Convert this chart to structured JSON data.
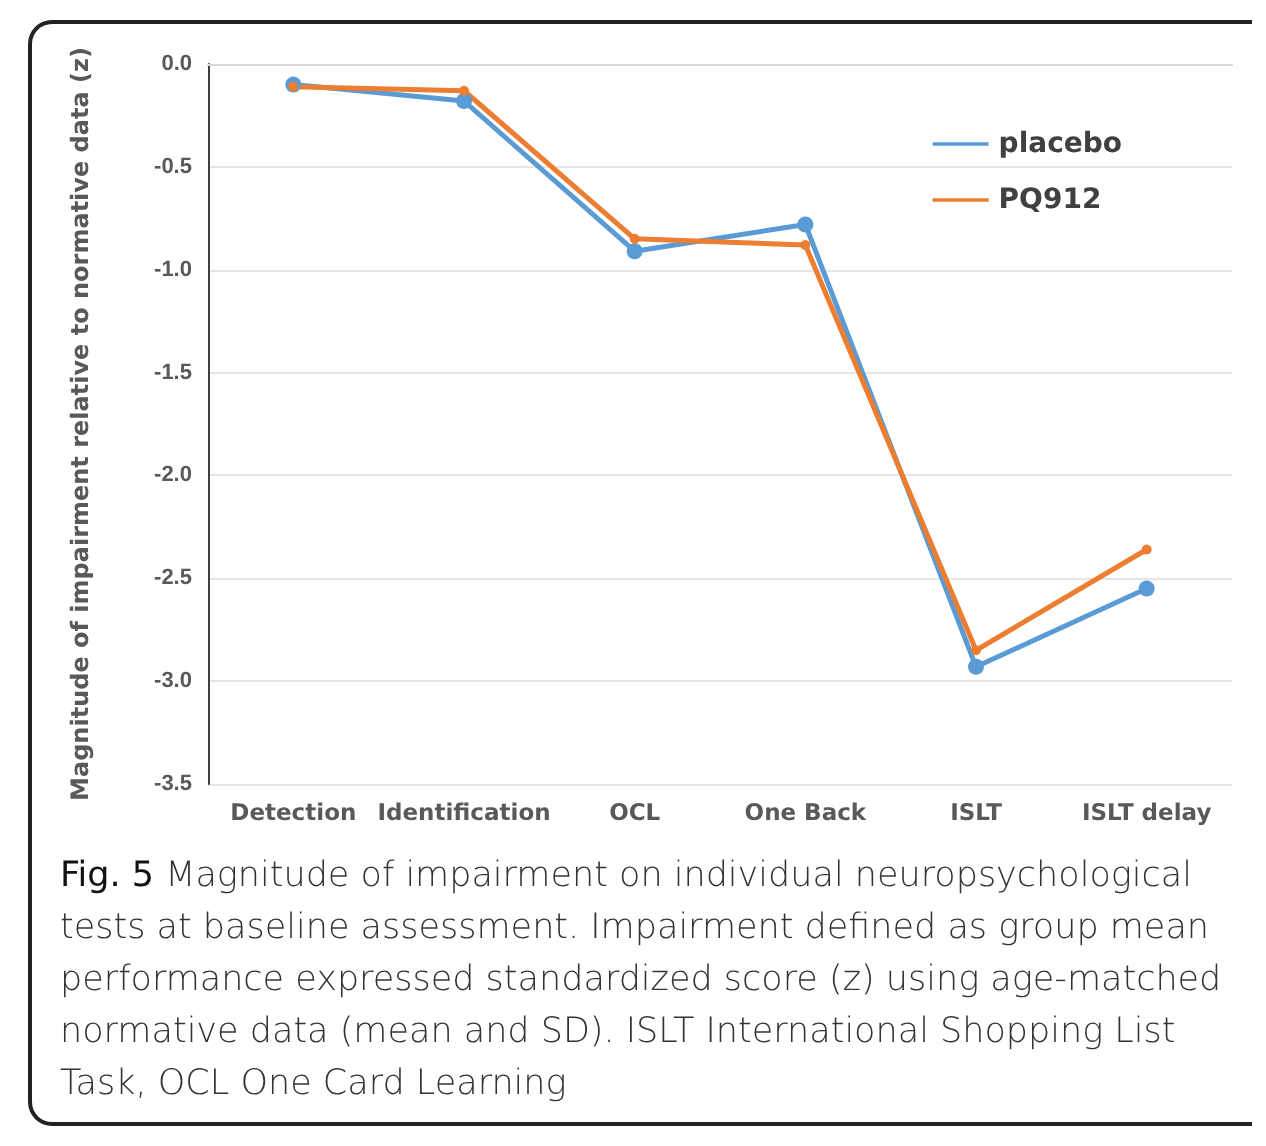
{
  "chart_data": {
    "type": "line",
    "ylabel": "Magnitude of impairment relative to normative data (z)",
    "categories": [
      "Detection",
      "Identification",
      "OCL",
      "One Back",
      "ISLT",
      "ISLT delay"
    ],
    "series": [
      {
        "name": "placebo",
        "color": "#5b9bd5",
        "values": [
          -0.1,
          -0.18,
          -0.91,
          -0.78,
          -2.93,
          -2.55
        ]
      },
      {
        "name": "PQ912",
        "color": "#ed7d31",
        "values": [
          -0.11,
          -0.13,
          -0.85,
          -0.88,
          -2.85,
          -2.36
        ]
      }
    ],
    "ylim": [
      -3.5,
      0
    ],
    "yticks": [
      {
        "value": -3.5,
        "label": "-3.5"
      },
      {
        "value": -3,
        "label": "-3.0"
      },
      {
        "value": -2.5,
        "label": "-2.5"
      },
      {
        "value": -2,
        "label": "-2.0"
      },
      {
        "value": -1.5,
        "label": "-1.5"
      },
      {
        "value": -1,
        "label": "-1.0"
      },
      {
        "value": -0.5,
        "label": "-0.5"
      },
      {
        "value": 0,
        "label": "0.0"
      }
    ],
    "grid": "y",
    "legend": "top right",
    "marker": "circle",
    "line_style": "solid",
    "annotations": [
      "Fig. 5",
      "Magnitude of impairment on individual neuropsychological tests at baseline assessment. Impairment defined as group mean performance expressed standardized score (z) using age-matched normative data (mean and SD). ISLT International Shopping List Task, OCL One Card Learning"
    ]
  }
}
